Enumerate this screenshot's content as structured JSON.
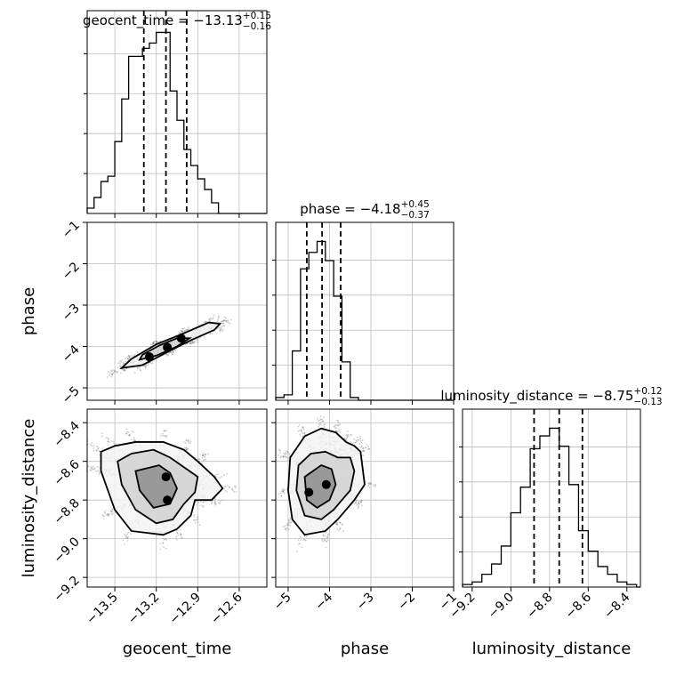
{
  "chart_data": {
    "type": "corner",
    "parameters": [
      "geocent_time",
      "phase",
      "luminosity_distance"
    ],
    "axis_labels": [
      "geocent_time",
      "phase",
      "luminosity_distance"
    ],
    "titles": [
      {
        "parameter": "geocent_time",
        "prefix": "geocent_time = ",
        "value": "−13.13",
        "plus": "+0.15",
        "minus": "−0.16"
      },
      {
        "parameter": "phase",
        "prefix": "phase = ",
        "value": "−4.18",
        "plus": "+0.45",
        "minus": "−0.37"
      },
      {
        "parameter": "luminosity_distance",
        "prefix": "luminosity_distance = ",
        "value": "−8.75",
        "plus": "+0.12",
        "minus": "−0.13"
      }
    ],
    "ranges": {
      "geocent_time": [
        -13.7,
        -12.4
      ],
      "phase": [
        -5.3,
        -1.0
      ],
      "luminosity_distance": [
        -9.25,
        -8.33
      ]
    },
    "ticks": {
      "geocent_time": {
        "values": [
          -13.5,
          -13.2,
          -12.9,
          -12.6
        ],
        "labels": [
          "−13.5",
          "−13.2",
          "−12.9",
          "−12.6"
        ]
      },
      "phase": {
        "values": [
          -5,
          -4,
          -3,
          -2,
          -1
        ],
        "labels": [
          "−5",
          "−4",
          "−3",
          "−2",
          "−1"
        ]
      },
      "phase_y": {
        "values": [
          -1,
          -2,
          -3,
          -4,
          -5
        ],
        "labels": [
          "−1",
          "−2",
          "−3",
          "−4",
          "−5"
        ]
      },
      "luminosity_distance": {
        "values": [
          -9.2,
          -9.0,
          -8.8,
          -8.6,
          -8.4
        ],
        "labels": [
          "−9.2",
          "−9.0",
          "−8.8",
          "−8.6",
          "−8.4"
        ]
      },
      "luminosity_distance_y": {
        "values": [
          -8.4,
          -8.6,
          -8.8,
          -9.0,
          -9.2
        ],
        "labels": [
          "−8.4",
          "−8.6",
          "−8.8",
          "−9.0",
          "−9.2"
        ]
      }
    },
    "histograms": {
      "geocent_time": {
        "bin_edges": [
          -13.7,
          -13.65,
          -13.6,
          -13.55,
          -13.5,
          -13.45,
          -13.4,
          -13.35,
          -13.3,
          -13.25,
          -13.2,
          -13.15,
          -13.1,
          -13.05,
          -13.0,
          -12.95,
          -12.9,
          -12.85,
          -12.8,
          -12.75,
          -12.7,
          -12.65,
          -12.6,
          -12.55,
          -12.5,
          -12.45,
          -12.4
        ],
        "counts": [
          0.2,
          0.6,
          1.2,
          1.4,
          2.7,
          4.3,
          5.9,
          5.9,
          6.2,
          6.4,
          6.8,
          6.8,
          4.6,
          3.5,
          2.4,
          1.8,
          1.3,
          0.9,
          0.4,
          0.0,
          0.0,
          0.0,
          0.0,
          0.0,
          0.0,
          0.0
        ],
        "quantiles": [
          -13.29,
          -13.13,
          -12.98
        ]
      },
      "phase": {
        "bin_edges": [
          -5.3,
          -5.1,
          -4.9,
          -4.7,
          -4.5,
          -4.3,
          -4.1,
          -3.9,
          -3.7,
          -3.5,
          -3.3,
          -3.1,
          -2.9,
          -2.7,
          -2.5,
          -2.3,
          -2.1,
          -1.9,
          -1.7,
          -1.5,
          -1.3,
          -1.1,
          -1.0
        ],
        "counts": [
          0.1,
          0.2,
          1.8,
          4.8,
          5.4,
          5.8,
          5.1,
          3.8,
          1.4,
          0.1,
          0.0,
          0.0,
          0.0,
          0.0,
          0.0,
          0.0,
          0.0,
          0.0,
          0.0,
          0.0,
          0.0,
          0.0
        ],
        "quantiles": [
          -4.55,
          -4.18,
          -3.73
        ]
      },
      "luminosity_distance": {
        "bin_edges": [
          -9.25,
          -9.2,
          -9.15,
          -9.1,
          -9.05,
          -9.0,
          -8.95,
          -8.9,
          -8.85,
          -8.8,
          -8.75,
          -8.7,
          -8.65,
          -8.6,
          -8.55,
          -8.5,
          -8.45,
          -8.4,
          -8.35,
          -8.33
        ],
        "counts": [
          0.1,
          0.2,
          0.5,
          0.9,
          1.6,
          2.9,
          3.9,
          5.4,
          5.9,
          6.2,
          5.5,
          4.0,
          2.2,
          1.4,
          0.8,
          0.5,
          0.2,
          0.1,
          0.0
        ],
        "quantiles": [
          -8.88,
          -8.75,
          -8.63
        ]
      }
    },
    "joint": [
      {
        "x": "geocent_time",
        "y": "phase",
        "contours": [
          [
            [
              -13.45,
              -4.52
            ],
            [
              -13.3,
              -4.45
            ],
            [
              -13.1,
              -4.1
            ],
            [
              -12.95,
              -3.85
            ],
            [
              -12.78,
              -3.6
            ],
            [
              -12.74,
              -3.45
            ],
            [
              -12.82,
              -3.42
            ],
            [
              -13.0,
              -3.68
            ],
            [
              -13.2,
              -3.95
            ],
            [
              -13.38,
              -4.3
            ]
          ],
          [
            [
              -13.32,
              -4.32
            ],
            [
              -13.2,
              -4.22
            ],
            [
              -13.05,
              -4.0
            ],
            [
              -12.96,
              -3.8
            ],
            [
              -13.05,
              -3.8
            ],
            [
              -13.18,
              -3.98
            ],
            [
              -13.3,
              -4.2
            ]
          ]
        ],
        "peaks": [
          [
            -13.25,
            -4.25
          ],
          [
            -13.12,
            -4.02
          ],
          [
            -13.02,
            -3.8
          ]
        ]
      },
      {
        "x": "geocent_time",
        "y": "luminosity_distance",
        "contours": [
          [
            [
              -13.6,
              -8.55
            ],
            [
              -13.6,
              -8.65
            ],
            [
              -13.5,
              -8.85
            ],
            [
              -13.38,
              -8.96
            ],
            [
              -13.15,
              -8.98
            ],
            [
              -13.05,
              -8.95
            ],
            [
              -12.95,
              -8.88
            ],
            [
              -12.92,
              -8.8
            ],
            [
              -12.8,
              -8.8
            ],
            [
              -12.72,
              -8.74
            ],
            [
              -12.78,
              -8.68
            ],
            [
              -12.9,
              -8.6
            ],
            [
              -13.0,
              -8.54
            ],
            [
              -13.15,
              -8.5
            ],
            [
              -13.35,
              -8.5
            ],
            [
              -13.5,
              -8.52
            ]
          ],
          [
            [
              -13.48,
              -8.6
            ],
            [
              -13.45,
              -8.72
            ],
            [
              -13.35,
              -8.85
            ],
            [
              -13.2,
              -8.92
            ],
            [
              -13.08,
              -8.9
            ],
            [
              -13.0,
              -8.82
            ],
            [
              -12.92,
              -8.76
            ],
            [
              -12.9,
              -8.68
            ],
            [
              -12.98,
              -8.64
            ],
            [
              -13.1,
              -8.58
            ],
            [
              -13.22,
              -8.54
            ],
            [
              -13.38,
              -8.56
            ]
          ],
          [
            [
              -13.35,
              -8.65
            ],
            [
              -13.32,
              -8.75
            ],
            [
              -13.22,
              -8.84
            ],
            [
              -13.1,
              -8.82
            ],
            [
              -13.05,
              -8.74
            ],
            [
              -13.1,
              -8.66
            ],
            [
              -13.18,
              -8.62
            ]
          ]
        ],
        "peaks": [
          [
            -13.13,
            -8.68
          ],
          [
            -13.12,
            -8.8
          ]
        ]
      },
      {
        "x": "phase",
        "y": "luminosity_distance",
        "contours": [
          [
            [
              -4.95,
              -8.58
            ],
            [
              -5.0,
              -8.75
            ],
            [
              -4.9,
              -8.9
            ],
            [
              -4.6,
              -8.98
            ],
            [
              -4.1,
              -8.96
            ],
            [
              -3.8,
              -8.9
            ],
            [
              -3.4,
              -8.8
            ],
            [
              -3.15,
              -8.72
            ],
            [
              -3.25,
              -8.55
            ],
            [
              -3.4,
              -8.52
            ],
            [
              -3.6,
              -8.5
            ],
            [
              -3.85,
              -8.45
            ],
            [
              -4.2,
              -8.43
            ],
            [
              -4.6,
              -8.47
            ]
          ],
          [
            [
              -4.75,
              -8.62
            ],
            [
              -4.8,
              -8.75
            ],
            [
              -4.6,
              -8.88
            ],
            [
              -4.2,
              -8.9
            ],
            [
              -3.9,
              -8.85
            ],
            [
              -3.5,
              -8.75
            ],
            [
              -3.4,
              -8.65
            ],
            [
              -3.5,
              -8.58
            ],
            [
              -3.8,
              -8.58
            ],
            [
              -4.1,
              -8.55
            ],
            [
              -4.45,
              -8.56
            ]
          ],
          [
            [
              -4.6,
              -8.68
            ],
            [
              -4.55,
              -8.8
            ],
            [
              -4.3,
              -8.84
            ],
            [
              -4.0,
              -8.8
            ],
            [
              -3.85,
              -8.72
            ],
            [
              -3.95,
              -8.64
            ],
            [
              -4.2,
              -8.62
            ]
          ]
        ],
        "peaks": [
          [
            -4.08,
            -8.72
          ],
          [
            -4.5,
            -8.76
          ]
        ]
      }
    ]
  }
}
